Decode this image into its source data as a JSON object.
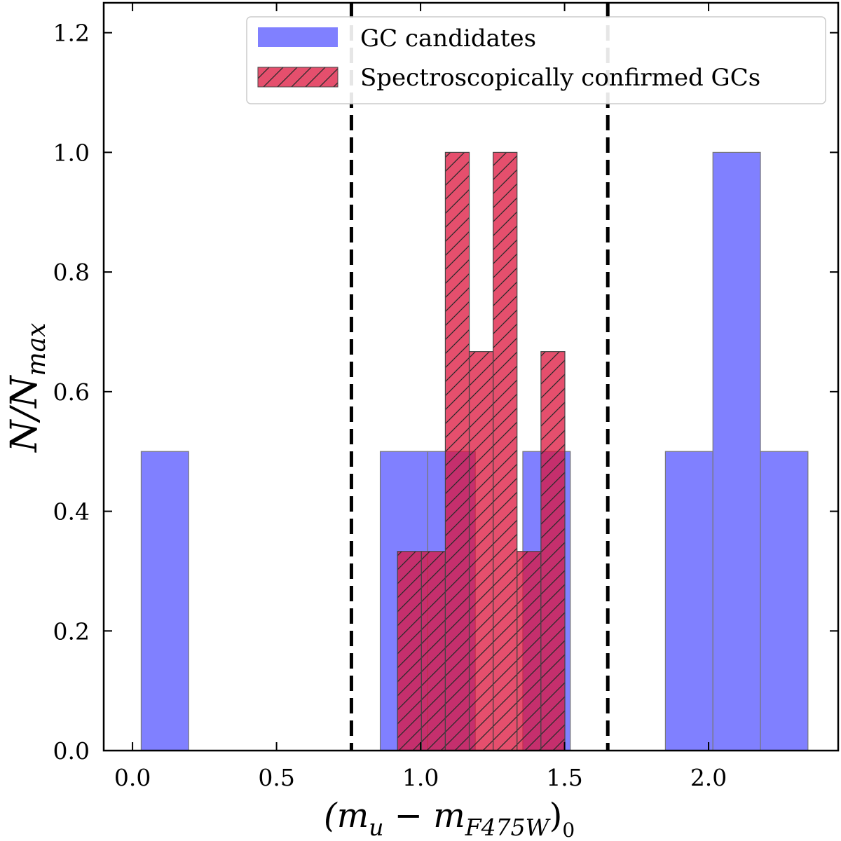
{
  "chart_data": {
    "type": "bar",
    "xlabel": {
      "base": "(m",
      "sub_u": "u",
      "minus": " − m",
      "sub_f": "F475W",
      "close": ")",
      "sub_0": "0"
    },
    "ylabel": {
      "base": "N/N",
      "sub": "max"
    },
    "xlim": [
      -0.1,
      2.45
    ],
    "ylim": [
      0.0,
      1.25
    ],
    "xticks": [
      "0.0",
      "0.5",
      "1.0",
      "1.5",
      "2.0"
    ],
    "xtick_values": [
      0.0,
      0.5,
      1.0,
      1.5,
      2.0
    ],
    "yticks": [
      "0.0",
      "0.2",
      "0.4",
      "0.6",
      "0.8",
      "1.0",
      "1.2"
    ],
    "ytick_values": [
      0.0,
      0.2,
      0.4,
      0.6,
      0.8,
      1.0,
      1.2
    ],
    "grid": false,
    "legend_position": "top-right",
    "vlines": [
      0.76,
      1.65
    ],
    "series": [
      {
        "name": "GC candidates",
        "color": "#8080ff",
        "hatch": false,
        "bins": [
          {
            "x0": 0.03,
            "x1": 0.195,
            "value": 0.5
          },
          {
            "x0": 0.86,
            "x1": 1.025,
            "value": 0.5
          },
          {
            "x0": 1.025,
            "x1": 1.19,
            "value": 0.5
          },
          {
            "x0": 1.355,
            "x1": 1.52,
            "value": 0.5
          },
          {
            "x0": 1.85,
            "x1": 2.015,
            "value": 0.5
          },
          {
            "x0": 2.015,
            "x1": 2.18,
            "value": 1.0
          },
          {
            "x0": 2.18,
            "x1": 2.345,
            "value": 0.5
          }
        ]
      },
      {
        "name": "Spectroscopically confirmed GCs",
        "color": "#dc143c",
        "hatch": true,
        "bins": [
          {
            "x0": 0.92,
            "x1": 1.003,
            "value": 0.333
          },
          {
            "x0": 1.003,
            "x1": 1.086,
            "value": 0.333
          },
          {
            "x0": 1.086,
            "x1": 1.169,
            "value": 1.0
          },
          {
            "x0": 1.169,
            "x1": 1.252,
            "value": 0.667
          },
          {
            "x0": 1.252,
            "x1": 1.335,
            "value": 1.0
          },
          {
            "x0": 1.335,
            "x1": 1.418,
            "value": 0.333
          },
          {
            "x0": 1.418,
            "x1": 1.501,
            "value": 0.667
          }
        ]
      }
    ]
  }
}
